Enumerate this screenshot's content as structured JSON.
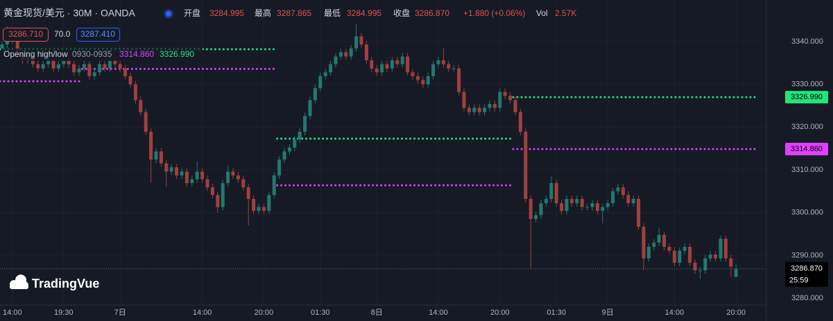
{
  "header": {
    "symbol": "黄金现货/美元 · 30M · OANDA",
    "fields": [
      {
        "label": "开盘",
        "value": "3284.995"
      },
      {
        "label": "最高",
        "value": "3287.865"
      },
      {
        "label": "最低",
        "value": "3284.995"
      },
      {
        "label": "收盘",
        "value": "3286.870"
      }
    ],
    "change": "+1.880 (+0.06%)",
    "vol_label": "Vol",
    "vol": "2.57K",
    "badges": [
      "3286.710",
      "70.0",
      "3287.410"
    ],
    "indicator": {
      "name": "Opening high/low",
      "session": "0930-0935",
      "low": "3314.860",
      "high": "3326.990"
    },
    "logo": "TradingVue"
  },
  "chart_data": {
    "type": "candlestick",
    "up_color": "#22796f",
    "down_color": "#a0403f",
    "high_color": "#22e57a",
    "low_color": "#e040fb",
    "grid": true,
    "ylim": [
      3278.4,
      3349.7
    ],
    "yticks": [
      {
        "value": 3280,
        "label": "3280.000"
      },
      {
        "value": 3290,
        "label": "3290.000"
      },
      {
        "value": 3300,
        "label": "3300.000"
      },
      {
        "value": 3310,
        "label": "3310.000"
      },
      {
        "value": 3320,
        "label": "3320.000"
      },
      {
        "value": 3330,
        "label": "3330.000"
      },
      {
        "value": 3340,
        "label": "3340.000"
      }
    ],
    "categories": [
      null,
      null,
      "14:00",
      null,
      null,
      null,
      null,
      null,
      null,
      null,
      null,
      null,
      "19:30",
      null,
      null,
      null,
      null,
      null,
      null,
      null,
      null,
      null,
      null,
      "7日",
      null,
      null,
      null,
      null,
      null,
      null,
      null,
      null,
      null,
      null,
      null,
      null,
      null,
      null,
      null,
      "14:00",
      null,
      null,
      null,
      null,
      null,
      null,
      null,
      null,
      null,
      null,
      null,
      "20:00",
      null,
      null,
      null,
      null,
      null,
      null,
      null,
      null,
      null,
      null,
      "01:30",
      null,
      null,
      null,
      null,
      null,
      null,
      null,
      null,
      null,
      null,
      "8日",
      null,
      null,
      null,
      null,
      null,
      null,
      null,
      null,
      null,
      null,
      null,
      "14:00",
      null,
      null,
      null,
      null,
      null,
      null,
      null,
      null,
      null,
      null,
      null,
      "20:00",
      null,
      null,
      null,
      null,
      null,
      null,
      null,
      null,
      null,
      null,
      "01:30",
      null,
      null,
      null,
      null,
      null,
      null,
      null,
      null,
      null,
      "9日",
      null,
      null,
      null,
      null,
      null,
      null,
      null,
      null,
      null,
      null,
      null,
      null,
      "14:00",
      null,
      null,
      null,
      null,
      null,
      null,
      null,
      null,
      null,
      null,
      null,
      "20:00"
    ],
    "ohlc": [
      [
        3338.4,
        3340.1,
        3337.6,
        3339.3
      ],
      [
        3339.3,
        3343.5,
        3338.5,
        3341.2
      ],
      [
        3341.2,
        3342.0,
        3339.4,
        3340.2
      ],
      [
        3340.2,
        3341.0,
        3336.7,
        3337.5
      ],
      [
        3337.5,
        3338.3,
        3334.8,
        3335.6
      ],
      [
        3335.6,
        3337.3,
        3334.8,
        3336.5
      ],
      [
        3336.5,
        3337.3,
        3333.9,
        3334.7
      ],
      [
        3334.7,
        3335.5,
        3332.9,
        3333.7
      ],
      [
        3333.7,
        3335.5,
        3332.9,
        3334.7
      ],
      [
        3334.7,
        3336.4,
        3333.9,
        3335.6
      ],
      [
        3335.6,
        3336.4,
        3332.9,
        3333.7
      ],
      [
        3333.7,
        3335.5,
        3332.9,
        3334.7
      ],
      [
        3334.7,
        3336.4,
        3333.9,
        3335.6
      ],
      [
        3335.6,
        3336.4,
        3333.9,
        3334.7
      ],
      [
        3334.7,
        3335.5,
        3332.0,
        3332.8
      ],
      [
        3332.8,
        3334.5,
        3332.0,
        3333.7
      ],
      [
        3333.7,
        3335.5,
        3332.9,
        3334.7
      ],
      [
        3334.7,
        3335.5,
        3331.1,
        3331.9
      ],
      [
        3331.9,
        3333.6,
        3331.1,
        3332.8
      ],
      [
        3332.8,
        3335.5,
        3332.0,
        3334.7
      ],
      [
        3334.7,
        3335.5,
        3332.9,
        3333.7
      ],
      [
        3333.7,
        3338.0,
        3332.9,
        3335.6
      ],
      [
        3335.6,
        3336.4,
        3333.9,
        3334.7
      ],
      [
        3334.7,
        3335.5,
        3332.9,
        3333.7
      ],
      [
        3333.7,
        3334.5,
        3331.1,
        3331.9
      ],
      [
        3331.9,
        3332.7,
        3329.2,
        3330.0
      ],
      [
        3330.0,
        3330.8,
        3325.5,
        3326.3
      ],
      [
        3326.3,
        3327.1,
        3322.7,
        3323.5
      ],
      [
        3323.5,
        3324.3,
        3318.1,
        3318.9
      ],
      [
        3318.9,
        3319.7,
        3307.0,
        3312.4
      ],
      [
        3312.4,
        3315.1,
        3311.6,
        3314.3
      ],
      [
        3314.3,
        3315.1,
        3310.7,
        3311.5
      ],
      [
        3311.5,
        3312.3,
        3306.0,
        3309.6
      ],
      [
        3309.6,
        3311.4,
        3308.8,
        3310.6
      ],
      [
        3310.6,
        3311.4,
        3307.9,
        3308.7
      ],
      [
        3308.7,
        3310.4,
        3307.9,
        3309.6
      ],
      [
        3309.6,
        3310.4,
        3306.1,
        3306.9
      ],
      [
        3306.9,
        3308.6,
        3306.1,
        3307.8
      ],
      [
        3307.8,
        3312.0,
        3307.0,
        3309.6
      ],
      [
        3309.6,
        3310.4,
        3307.0,
        3307.8
      ],
      [
        3307.8,
        3308.6,
        3305.1,
        3305.9
      ],
      [
        3305.9,
        3306.7,
        3303.3,
        3304.1
      ],
      [
        3304.1,
        3304.9,
        3300.0,
        3301.3
      ],
      [
        3301.3,
        3307.7,
        3300.5,
        3306.9
      ],
      [
        3306.9,
        3311.0,
        3306.1,
        3309.6
      ],
      [
        3309.6,
        3310.4,
        3307.9,
        3308.7
      ],
      [
        3308.7,
        3309.5,
        3307.0,
        3307.8
      ],
      [
        3307.8,
        3308.6,
        3305.1,
        3305.9
      ],
      [
        3305.9,
        3306.7,
        3297.0,
        3303.2
      ],
      [
        3303.2,
        3304.0,
        3299.6,
        3300.4
      ],
      [
        3300.4,
        3302.1,
        3299.6,
        3301.3
      ],
      [
        3301.3,
        3302.1,
        3299.6,
        3300.4
      ],
      [
        3300.4,
        3304.9,
        3299.6,
        3304.1
      ],
      [
        3304.1,
        3309.5,
        3303.3,
        3308.7
      ],
      [
        3308.7,
        3313.2,
        3307.9,
        3312.4
      ],
      [
        3312.4,
        3315.1,
        3311.6,
        3314.3
      ],
      [
        3314.3,
        3316.0,
        3313.5,
        3315.2
      ],
      [
        3315.2,
        3317.9,
        3314.4,
        3317.1
      ],
      [
        3317.1,
        3319.7,
        3316.3,
        3318.9
      ],
      [
        3318.9,
        3323.4,
        3318.1,
        3322.6
      ],
      [
        3322.6,
        3327.1,
        3321.8,
        3326.3
      ],
      [
        3326.3,
        3329.9,
        3325.5,
        3329.1
      ],
      [
        3329.1,
        3332.7,
        3328.3,
        3331.9
      ],
      [
        3331.9,
        3333.6,
        3331.1,
        3332.8
      ],
      [
        3332.8,
        3335.5,
        3332.0,
        3334.7
      ],
      [
        3334.7,
        3337.3,
        3333.9,
        3336.5
      ],
      [
        3336.5,
        3338.3,
        3335.7,
        3337.5
      ],
      [
        3337.5,
        3338.3,
        3335.7,
        3336.5
      ],
      [
        3336.5,
        3339.2,
        3335.7,
        3338.4
      ],
      [
        3338.4,
        3344.0,
        3337.6,
        3341.2
      ],
      [
        3341.2,
        3342.0,
        3338.5,
        3339.3
      ],
      [
        3339.3,
        3340.1,
        3334.8,
        3335.6
      ],
      [
        3335.6,
        3336.4,
        3332.9,
        3333.7
      ],
      [
        3333.7,
        3334.5,
        3332.0,
        3332.8
      ],
      [
        3332.8,
        3335.5,
        3332.0,
        3334.7
      ],
      [
        3334.7,
        3335.5,
        3332.9,
        3333.7
      ],
      [
        3333.7,
        3336.4,
        3332.9,
        3335.6
      ],
      [
        3335.6,
        3336.4,
        3333.9,
        3334.7
      ],
      [
        3334.7,
        3337.3,
        3333.9,
        3336.5
      ],
      [
        3336.5,
        3337.3,
        3332.0,
        3332.8
      ],
      [
        3332.8,
        3333.6,
        3331.1,
        3331.9
      ],
      [
        3331.9,
        3332.7,
        3330.2,
        3331.0
      ],
      [
        3331.0,
        3331.8,
        3329.2,
        3330.0
      ],
      [
        3330.0,
        3332.7,
        3329.2,
        3331.9
      ],
      [
        3331.9,
        3335.5,
        3331.1,
        3334.7
      ],
      [
        3334.7,
        3336.4,
        3333.9,
        3335.6
      ],
      [
        3335.6,
        3338.5,
        3333.9,
        3334.7
      ],
      [
        3334.7,
        3335.5,
        3332.9,
        3333.7
      ],
      [
        3333.7,
        3334.5,
        3332.9,
        3333.7
      ],
      [
        3333.7,
        3334.5,
        3327.4,
        3328.2
      ],
      [
        3328.2,
        3329.0,
        3323.7,
        3324.5
      ],
      [
        3324.5,
        3325.3,
        3322.7,
        3323.5
      ],
      [
        3323.5,
        3325.3,
        3322.7,
        3324.5
      ],
      [
        3324.5,
        3325.3,
        3322.7,
        3323.5
      ],
      [
        3323.5,
        3325.3,
        3322.7,
        3324.5
      ],
      [
        3324.5,
        3326.2,
        3323.7,
        3325.4
      ],
      [
        3325.4,
        3326.2,
        3323.7,
        3324.5
      ],
      [
        3324.5,
        3329.0,
        3323.7,
        3328.2
      ],
      [
        3328.2,
        3329.0,
        3326.5,
        3327.3
      ],
      [
        3327.3,
        3328.1,
        3325.5,
        3326.3
      ],
      [
        3326.3,
        3327.1,
        3322.7,
        3323.5
      ],
      [
        3323.5,
        3324.3,
        3318.1,
        3318.9
      ],
      [
        3318.9,
        3319.7,
        3302.4,
        3303.2
      ],
      [
        3303.2,
        3304.0,
        3287.0,
        3298.5
      ],
      [
        3298.5,
        3300.2,
        3297.7,
        3299.4
      ],
      [
        3299.4,
        3303.0,
        3298.6,
        3302.2
      ],
      [
        3302.2,
        3304.0,
        3301.4,
        3303.2
      ],
      [
        3303.2,
        3308.5,
        3302.4,
        3306.9
      ],
      [
        3306.9,
        3307.7,
        3301.4,
        3302.2
      ],
      [
        3302.2,
        3303.0,
        3299.6,
        3300.4
      ],
      [
        3300.4,
        3304.0,
        3299.6,
        3303.2
      ],
      [
        3303.2,
        3304.0,
        3301.4,
        3302.2
      ],
      [
        3302.2,
        3304.0,
        3301.4,
        3303.2
      ],
      [
        3303.2,
        3304.0,
        3300.5,
        3301.3
      ],
      [
        3301.3,
        3302.1,
        3300.5,
        3301.3
      ],
      [
        3301.3,
        3303.0,
        3300.5,
        3302.2
      ],
      [
        3302.2,
        3303.0,
        3299.6,
        3300.4
      ],
      [
        3300.4,
        3302.1,
        3297.5,
        3301.3
      ],
      [
        3301.3,
        3303.0,
        3300.5,
        3302.2
      ],
      [
        3302.2,
        3305.8,
        3301.4,
        3305.0
      ],
      [
        3305.0,
        3306.7,
        3304.2,
        3305.9
      ],
      [
        3305.9,
        3306.7,
        3303.3,
        3304.1
      ],
      [
        3304.1,
        3304.9,
        3301.4,
        3302.2
      ],
      [
        3302.2,
        3304.0,
        3301.4,
        3303.2
      ],
      [
        3303.2,
        3304.0,
        3295.9,
        3296.7
      ],
      [
        3296.7,
        3297.5,
        3286.5,
        3289.3
      ],
      [
        3289.3,
        3292.8,
        3288.5,
        3292.0
      ],
      [
        3292.0,
        3293.8,
        3291.2,
        3293.0
      ],
      [
        3293.0,
        3296.5,
        3292.2,
        3294.8
      ],
      [
        3294.8,
        3295.6,
        3291.2,
        3292.0
      ],
      [
        3292.0,
        3292.8,
        3290.3,
        3291.1
      ],
      [
        3291.1,
        3291.9,
        3287.5,
        3288.3
      ],
      [
        3288.3,
        3291.9,
        3287.5,
        3291.1
      ],
      [
        3291.1,
        3292.8,
        3290.3,
        3292.0
      ],
      [
        3292.0,
        3292.8,
        3287.5,
        3288.3
      ],
      [
        3288.3,
        3289.1,
        3285.7,
        3286.5
      ],
      [
        3286.5,
        3287.3,
        3284.5,
        3286.5
      ],
      [
        3286.5,
        3290.1,
        3285.7,
        3289.3
      ],
      [
        3289.3,
        3291.0,
        3288.5,
        3290.2
      ],
      [
        3290.2,
        3291.0,
        3288.5,
        3289.3
      ],
      [
        3289.3,
        3294.7,
        3288.5,
        3293.9
      ],
      [
        3293.9,
        3294.7,
        3288.5,
        3289.3
      ],
      [
        3289.3,
        3290.1,
        3285.0,
        3287.4
      ],
      [
        3284.995,
        3287.865,
        3284.995,
        3286.87
      ]
    ],
    "levels": [
      {
        "from": 0,
        "to": 15,
        "high": 3338.2,
        "low": 3330.7
      },
      {
        "from": 16,
        "to": 53,
        "high": 3338.2,
        "low": 3333.6
      },
      {
        "from": 54,
        "to": 99,
        "high": 3317.3,
        "low": 3306.4
      },
      {
        "from": 100,
        "to": 143,
        "high": 3326.99,
        "low": 3314.86,
        "high_label": "3326.990",
        "low_label": "3314.860"
      }
    ],
    "last_price": {
      "value": 3286.87,
      "label": "3286.870"
    },
    "countdown": "25:59"
  }
}
